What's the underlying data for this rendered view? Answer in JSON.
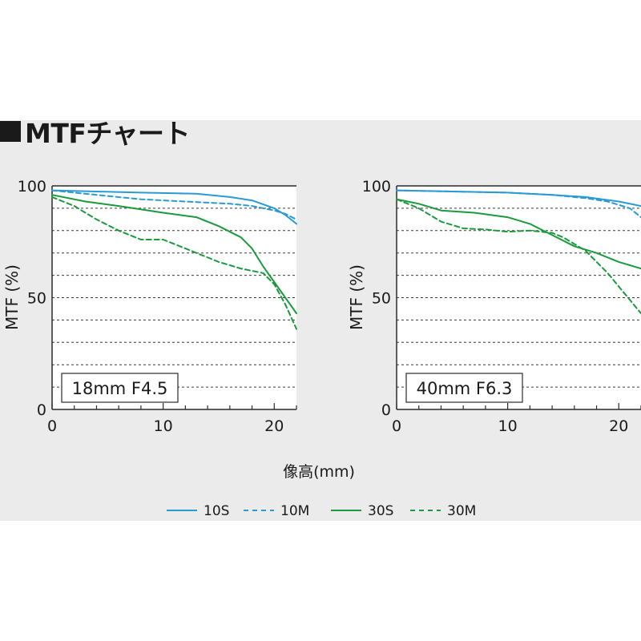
{
  "heading": "MTFチャート",
  "chart_data": [
    {
      "type": "line",
      "inset_label": "18mm F4.5",
      "ylabel": "MTF (%)",
      "xlabel": "像高(mm)",
      "ylim": [
        0,
        100
      ],
      "xlim": [
        0,
        22
      ],
      "x_ticks": [
        "0",
        "10",
        "20"
      ],
      "y_ticks": [
        "0",
        "50",
        "100"
      ],
      "grid": "dashed horizontal every 10%",
      "series": [
        {
          "name": "10S",
          "x": [
            0,
            4,
            8,
            13,
            16,
            18,
            20,
            21,
            22
          ],
          "y": [
            98,
            97.5,
            97,
            96.5,
            95,
            93.5,
            90,
            87,
            83
          ]
        },
        {
          "name": "10M",
          "x": [
            0,
            4,
            8,
            12,
            16,
            18,
            20,
            21,
            22
          ],
          "y": [
            98,
            96,
            94,
            93,
            92,
            91,
            89,
            87.5,
            85
          ]
        },
        {
          "name": "30S",
          "x": [
            0,
            3,
            6,
            10,
            13,
            15,
            17,
            18,
            19,
            20,
            21,
            22
          ],
          "y": [
            96,
            93,
            91,
            88,
            86,
            82,
            77,
            72,
            64,
            57,
            50,
            43
          ]
        },
        {
          "name": "30M",
          "x": [
            0,
            2,
            4,
            6,
            8,
            10,
            12,
            15,
            17,
            19,
            20,
            21,
            22
          ],
          "y": [
            95,
            91,
            85,
            80,
            76,
            76,
            72,
            66,
            63,
            61,
            56,
            47,
            36
          ]
        }
      ]
    },
    {
      "type": "line",
      "inset_label": "40mm F6.3",
      "ylabel": "MTF (%)",
      "xlabel": "像高(mm)",
      "ylim": [
        0,
        100
      ],
      "xlim": [
        0,
        22
      ],
      "x_ticks": [
        "0",
        "10",
        "20"
      ],
      "y_ticks": [
        "0",
        "50",
        "100"
      ],
      "grid": "dashed horizontal every 10%",
      "series": [
        {
          "name": "10S",
          "x": [
            0,
            5,
            10,
            14,
            17,
            20,
            22
          ],
          "y": [
            98,
            97.5,
            97,
            96,
            95,
            93,
            91
          ]
        },
        {
          "name": "10M",
          "x": [
            0,
            5,
            10,
            14,
            17,
            19,
            21,
            22
          ],
          "y": [
            98,
            97.5,
            97,
            96,
            94.5,
            93,
            90,
            86
          ]
        },
        {
          "name": "30S",
          "x": [
            0,
            2,
            4,
            7,
            10,
            12,
            14,
            16,
            18,
            20,
            22
          ],
          "y": [
            94,
            92,
            89,
            88,
            86,
            83,
            78,
            73,
            70,
            66,
            63
          ]
        },
        {
          "name": "30M",
          "x": [
            0,
            2,
            4,
            6,
            8,
            10,
            12,
            14,
            15,
            17,
            19,
            21,
            22
          ],
          "y": [
            94,
            90,
            84,
            81,
            80.5,
            79.5,
            80,
            79,
            77,
            71,
            61,
            49,
            43
          ]
        }
      ]
    }
  ],
  "legend": [
    {
      "label": "10S",
      "color": "#2a9ad6",
      "dash": false
    },
    {
      "label": "10M",
      "color": "#2a9ad6",
      "dash": true
    },
    {
      "label": "30S",
      "color": "#1a9a3c",
      "dash": false
    },
    {
      "label": "30M",
      "color": "#1a9a3c",
      "dash": true
    }
  ],
  "colors": {
    "blue": "#2a9ad6",
    "green": "#1a9a3c"
  }
}
